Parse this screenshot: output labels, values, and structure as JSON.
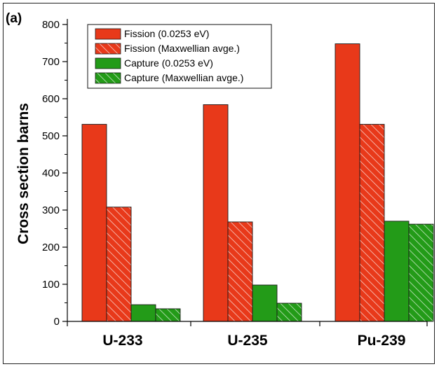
{
  "panel_label": "(a)",
  "colors": {
    "fission": "#e8391a",
    "capture": "#239b18",
    "outline": "#1a1a1a"
  },
  "chart_data": {
    "type": "bar",
    "title": "",
    "xlabel": "",
    "ylabel": "Cross section barns",
    "ylim": [
      0,
      800
    ],
    "yticks": [
      0,
      100,
      200,
      300,
      400,
      500,
      600,
      700,
      800
    ],
    "categories": [
      "U-233",
      "U-235",
      "Pu-239"
    ],
    "series": [
      {
        "name": "Fission (0.0253 eV)",
        "color": "#e8391a",
        "pattern": "solid",
        "values": [
          531,
          584,
          748
        ]
      },
      {
        "name": "Fission (Maxwellian avge.)",
        "color": "#e8391a",
        "pattern": "hatched",
        "values": [
          308,
          268,
          531
        ]
      },
      {
        "name": "Capture (0.0253 eV)",
        "color": "#239b18",
        "pattern": "solid",
        "values": [
          45,
          98,
          270
        ]
      },
      {
        "name": "Capture (Maxwellian avge.)",
        "color": "#239b18",
        "pattern": "hatched",
        "values": [
          34,
          49,
          262
        ]
      }
    ],
    "legend_position": "top-left",
    "grid": false
  }
}
